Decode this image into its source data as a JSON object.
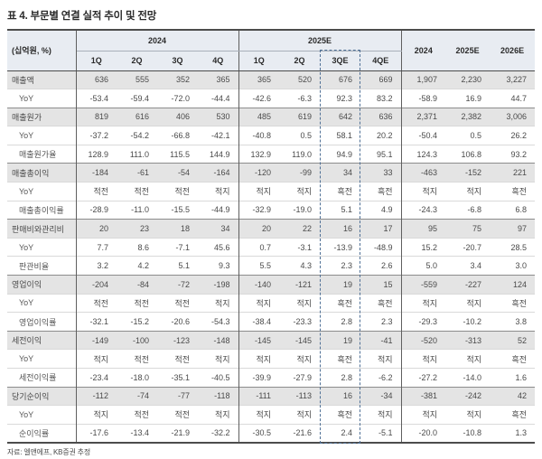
{
  "title": "표 4. 부문별 연결 실적 추이 및 전망",
  "unit_label": "(십억원, %)",
  "header": {
    "groups": [
      {
        "label": "2024",
        "span": 4
      },
      {
        "label": "2025E",
        "span": 4
      }
    ],
    "quarter_cols": [
      "1Q",
      "2Q",
      "3Q",
      "4Q",
      "1Q",
      "2Q",
      "3QE",
      "4QE"
    ],
    "annual_cols": [
      "2024",
      "2025E",
      "2026E"
    ],
    "highlighted_quarter": "3QE"
  },
  "rows": [
    {
      "label": "매출액",
      "type": "main",
      "values": [
        "636",
        "555",
        "352",
        "365",
        "365",
        "520",
        "676",
        "669",
        "1,907",
        "2,230",
        "3,227"
      ]
    },
    {
      "label": "YoY",
      "type": "sub",
      "values": [
        "-53.4",
        "-59.4",
        "-72.0",
        "-44.4",
        "-42.6",
        "-6.3",
        "92.3",
        "83.2",
        "-58.9",
        "16.9",
        "44.7"
      ]
    },
    {
      "label": "매출원가",
      "type": "main",
      "values": [
        "819",
        "616",
        "406",
        "530",
        "485",
        "619",
        "642",
        "636",
        "2,371",
        "2,382",
        "3,006"
      ]
    },
    {
      "label": "YoY",
      "type": "sub",
      "values": [
        "-37.2",
        "-54.2",
        "-66.8",
        "-42.1",
        "-40.8",
        "0.5",
        "58.1",
        "20.2",
        "-50.4",
        "0.5",
        "26.2"
      ]
    },
    {
      "label": "매출원가율",
      "type": "sub",
      "values": [
        "128.9",
        "111.0",
        "115.5",
        "144.9",
        "132.9",
        "119.0",
        "94.9",
        "95.1",
        "124.3",
        "106.8",
        "93.2"
      ]
    },
    {
      "label": "매출총이익",
      "type": "main",
      "values": [
        "-184",
        "-61",
        "-54",
        "-164",
        "-120",
        "-99",
        "34",
        "33",
        "-463",
        "-152",
        "221"
      ]
    },
    {
      "label": "YoY",
      "type": "sub",
      "values": [
        "적전",
        "적전",
        "적전",
        "적지",
        "적지",
        "적지",
        "흑전",
        "흑전",
        "적지",
        "적지",
        "흑전"
      ]
    },
    {
      "label": "매출총이익률",
      "type": "sub",
      "values": [
        "-28.9",
        "-11.0",
        "-15.5",
        "-44.9",
        "-32.9",
        "-19.0",
        "5.1",
        "4.9",
        "-24.3",
        "-6.8",
        "6.8"
      ]
    },
    {
      "label": "판매비와관리비",
      "type": "main",
      "values": [
        "20",
        "23",
        "18",
        "34",
        "20",
        "22",
        "16",
        "17",
        "95",
        "75",
        "97"
      ]
    },
    {
      "label": "YoY",
      "type": "sub",
      "values": [
        "7.7",
        "8.6",
        "-7.1",
        "45.6",
        "0.7",
        "-3.1",
        "-13.9",
        "-48.9",
        "15.2",
        "-20.7",
        "28.5"
      ]
    },
    {
      "label": "판관비율",
      "type": "sub",
      "values": [
        "3.2",
        "4.2",
        "5.1",
        "9.3",
        "5.5",
        "4.3",
        "2.3",
        "2.6",
        "5.0",
        "3.4",
        "3.0"
      ]
    },
    {
      "label": "영업이익",
      "type": "main",
      "values": [
        "-204",
        "-84",
        "-72",
        "-198",
        "-140",
        "-121",
        "19",
        "15",
        "-559",
        "-227",
        "124"
      ]
    },
    {
      "label": "YoY",
      "type": "sub",
      "values": [
        "적전",
        "적전",
        "적전",
        "적지",
        "적지",
        "적지",
        "흑전",
        "흑전",
        "적지",
        "적지",
        "흑전"
      ]
    },
    {
      "label": "영업이익률",
      "type": "sub",
      "values": [
        "-32.1",
        "-15.2",
        "-20.6",
        "-54.3",
        "-38.4",
        "-23.3",
        "2.8",
        "2.3",
        "-29.3",
        "-10.2",
        "3.8"
      ]
    },
    {
      "label": "세전이익",
      "type": "main",
      "values": [
        "-149",
        "-100",
        "-123",
        "-148",
        "-145",
        "-145",
        "19",
        "-41",
        "-520",
        "-313",
        "52"
      ]
    },
    {
      "label": "YoY",
      "type": "sub",
      "values": [
        "적지",
        "적전",
        "적전",
        "적지",
        "적지",
        "적지",
        "흑전",
        "적지",
        "적지",
        "적지",
        "흑전"
      ]
    },
    {
      "label": "세전이익률",
      "type": "sub",
      "values": [
        "-23.4",
        "-18.0",
        "-35.1",
        "-40.5",
        "-39.9",
        "-27.9",
        "2.8",
        "-6.2",
        "-27.2",
        "-14.0",
        "1.6"
      ]
    },
    {
      "label": "당기순이익",
      "type": "main",
      "values": [
        "-112",
        "-74",
        "-77",
        "-118",
        "-111",
        "-113",
        "16",
        "-34",
        "-381",
        "-242",
        "42"
      ]
    },
    {
      "label": "YoY",
      "type": "sub",
      "values": [
        "적지",
        "적전",
        "적전",
        "적지",
        "적지",
        "적지",
        "흑전",
        "적지",
        "적지",
        "적지",
        "흑전"
      ]
    },
    {
      "label": "순이익률",
      "type": "sub",
      "values": [
        "-17.6",
        "-13.4",
        "-21.9",
        "-32.2",
        "-30.5",
        "-21.6",
        "2.4",
        "-5.1",
        "-20.0",
        "-10.8",
        "1.3"
      ]
    }
  ],
  "footer": "자료: 엘앤에프, KB증권 추정",
  "colors": {
    "header_bg": "#e8ecf2",
    "main_row_bg": "#e4e4e4",
    "sub_row_bg": "#ffffff",
    "highlight_border": "#4f7096",
    "border_dark": "#4c4c4c",
    "border_section": "#8c8c8c",
    "border_light": "#d9d9d9",
    "text_primary": "#2b2b2b",
    "text_value": "#4a4a4a"
  }
}
